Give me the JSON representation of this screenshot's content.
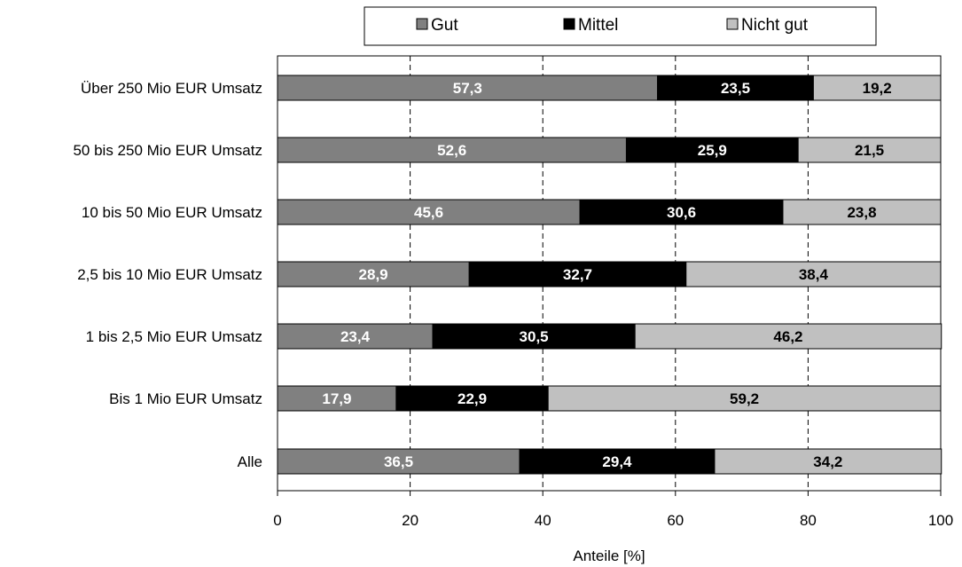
{
  "chart_data": {
    "type": "bar",
    "orientation": "horizontal",
    "stacked": true,
    "categories": [
      "Über 250 Mio EUR Umsatz",
      "50 bis 250 Mio EUR Umsatz",
      "10 bis 50 Mio EUR Umsatz",
      "2,5 bis 10 Mio EUR Umsatz",
      "1 bis 2,5 Mio EUR Umsatz",
      "Bis 1 Mio EUR Umsatz",
      "Alle"
    ],
    "series": [
      {
        "name": "Gut",
        "color": "#808080",
        "label_color": "#ffffff",
        "values": [
          57.3,
          52.6,
          45.6,
          28.9,
          23.4,
          17.9,
          36.5
        ],
        "labels": [
          "57,3",
          "52,6",
          "45,6",
          "28,9",
          "23,4",
          "17,9",
          "36,5"
        ]
      },
      {
        "name": "Mittel",
        "color": "#000000",
        "label_color": "#ffffff",
        "values": [
          23.5,
          25.9,
          30.6,
          32.7,
          30.5,
          22.9,
          29.4
        ],
        "labels": [
          "23,5",
          "25,9",
          "30,6",
          "32,7",
          "30,5",
          "22,9",
          "29,4"
        ]
      },
      {
        "name": "Nicht gut",
        "color": "#c0c0c0",
        "label_color": "#000000",
        "values": [
          19.2,
          21.5,
          23.8,
          38.4,
          46.2,
          59.2,
          34.2
        ],
        "labels": [
          "19,2",
          "21,5",
          "23,8",
          "38,4",
          "46,2",
          "59,2",
          "34,2"
        ]
      }
    ],
    "xlabel": "Anteile [%]",
    "ylabel": "",
    "xlim": [
      0,
      100
    ],
    "xticks": [
      0,
      20,
      40,
      60,
      80,
      100
    ],
    "xtick_labels": [
      "0",
      "20",
      "40",
      "60",
      "80",
      "100"
    ],
    "grid": "vertical dashed",
    "legend_position": "top"
  }
}
